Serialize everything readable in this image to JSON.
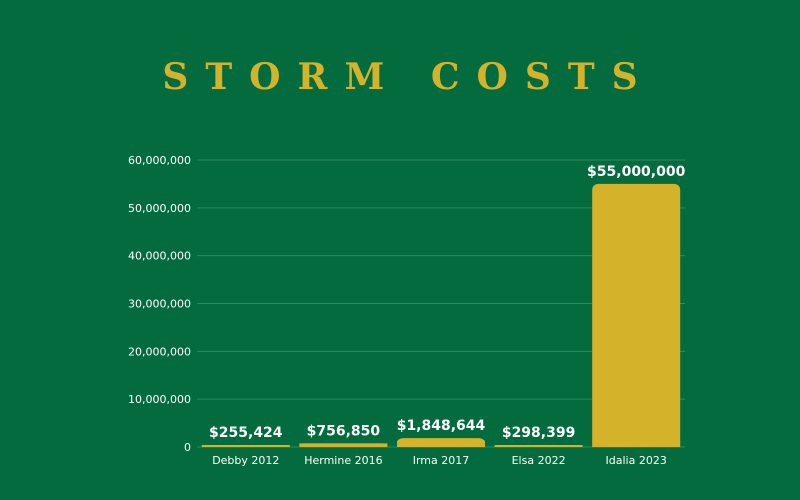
{
  "chart_data": {
    "type": "bar",
    "title": "STORM COSTS",
    "xlabel": "",
    "ylabel": "",
    "categories": [
      "Debby 2012",
      "Hermine 2016",
      "Irma 2017",
      "Elsa 2022",
      "Idalia 2023"
    ],
    "values": [
      255424,
      756850,
      1848644,
      298399,
      55000000
    ],
    "data_labels": [
      "$255,424",
      "$756,850",
      "$1,848,644",
      "$298,399",
      "$55,000,000"
    ],
    "ylim": [
      0,
      60000000
    ],
    "yticks": [
      0,
      10000000,
      20000000,
      30000000,
      40000000,
      50000000,
      60000000
    ],
    "ytick_labels": [
      "0",
      "10,000,000",
      "20,000,000",
      "30,000,000",
      "40,000,000",
      "50,000,000",
      "60,000,000"
    ],
    "grid": true,
    "legend": "none",
    "colors": {
      "background": "#036b3d",
      "bar": "#d4b22a",
      "title": "#d4b22a",
      "text": "#ffffff",
      "grid": "#2f8a5e"
    }
  }
}
